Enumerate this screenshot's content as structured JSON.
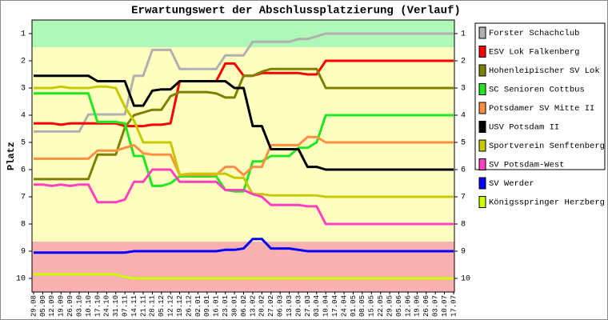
{
  "chart_data": {
    "type": "line",
    "title": "Erwartungswert der Abschlussplatzierung (Verlauf)",
    "y_label": "Platz",
    "categories": [
      "29.08",
      "05.09",
      "12.09",
      "19.09",
      "26.09",
      "03.10",
      "10.10",
      "17.10",
      "24.10",
      "31.10",
      "07.11",
      "14.11",
      "21.11",
      "28.11",
      "05.12",
      "12.12",
      "19.12",
      "26.12",
      "02.01",
      "09.01",
      "16.01",
      "23.01",
      "30.01",
      "06.02",
      "13.02",
      "20.02",
      "27.02",
      "06.03",
      "13.03",
      "20.03",
      "27.03",
      "03.04",
      "10.04",
      "17.04",
      "24.04",
      "01.05",
      "08.05",
      "15.05",
      "22.05",
      "29.05",
      "05.06",
      "12.06",
      "19.06",
      "26.06",
      "03.07",
      "10.07",
      "17.07"
    ],
    "ylim": [
      0.5,
      10.5
    ],
    "y_inverted": true,
    "yticks": [
      1,
      2,
      3,
      4,
      5,
      6,
      7,
      8,
      9,
      10
    ],
    "zones": [
      {
        "from": 0.5,
        "to": 1.5,
        "color": "#b0f8b8"
      },
      {
        "from": 1.5,
        "to": 8.65,
        "color": "#ffffc0"
      },
      {
        "from": 8.65,
        "to": 10.5,
        "color": "#f8b0b0"
      }
    ],
    "series": [
      {
        "name": "Forster Schachclub",
        "color": "#b0b0b0",
        "values": [
          4.6,
          4.6,
          4.6,
          4.6,
          4.6,
          4.6,
          3.97,
          3.97,
          3.97,
          3.97,
          3.97,
          2.55,
          2.55,
          1.6,
          1.6,
          1.6,
          2.3,
          2.3,
          2.3,
          2.3,
          2.3,
          1.8,
          1.8,
          1.8,
          1.3,
          1.3,
          1.3,
          1.3,
          1.3,
          1.2,
          1.2,
          1.1,
          1,
          1,
          1,
          1,
          1,
          1,
          1,
          1,
          1,
          1,
          1,
          1,
          1,
          1,
          1
        ]
      },
      {
        "name": "ESV Lok Falkenberg",
        "color": "#ff0000",
        "values": [
          4.3,
          4.3,
          4.3,
          4.35,
          4.3,
          4.3,
          4.3,
          4.3,
          4.3,
          4.3,
          4.4,
          4.4,
          4.4,
          4.35,
          4.35,
          4.3,
          2.75,
          2.75,
          2.75,
          2.75,
          2.75,
          2.1,
          2.1,
          2.55,
          2.55,
          2.45,
          2.45,
          2.45,
          2.45,
          2.45,
          2.5,
          2.5,
          2,
          2,
          2,
          2,
          2,
          2,
          2,
          2,
          2,
          2,
          2,
          2,
          2,
          2,
          2
        ]
      },
      {
        "name": "Hohenleipischer SV Lok",
        "color": "#808000",
        "values": [
          6.35,
          6.35,
          6.35,
          6.35,
          6.35,
          6.35,
          6.35,
          5.45,
          5.45,
          5.45,
          4.45,
          4,
          3.9,
          3.8,
          3.8,
          3.3,
          3.15,
          3.15,
          3.15,
          3.15,
          3.2,
          3.35,
          3.35,
          2.55,
          2.55,
          2.4,
          2.3,
          2.3,
          2.3,
          2.3,
          2.3,
          2.3,
          3,
          3,
          3,
          3,
          3,
          3,
          3,
          3,
          3,
          3,
          3,
          3,
          3,
          3,
          3
        ]
      },
      {
        "name": "SC Senioren Cottbus",
        "color": "#20e820",
        "values": [
          3.2,
          3.2,
          3.2,
          3.2,
          3.2,
          3.2,
          3.2,
          4.25,
          4.25,
          4.25,
          4.3,
          5.5,
          5.5,
          6.6,
          6.6,
          6.5,
          6.25,
          6.25,
          6.25,
          6.25,
          6.25,
          6.75,
          6.8,
          6.8,
          5.7,
          5.7,
          5.5,
          5.5,
          5.5,
          5.2,
          5.2,
          5,
          4,
          4,
          4,
          4,
          4,
          4,
          4,
          4,
          4,
          4,
          4,
          4,
          4,
          4,
          4
        ]
      },
      {
        "name": "Potsdamer SV Mitte II",
        "color": "#ff9040",
        "values": [
          5.6,
          5.6,
          5.6,
          5.6,
          5.6,
          5.6,
          5.6,
          5.3,
          5.3,
          5.3,
          5.2,
          5.1,
          5.4,
          5.45,
          5.45,
          5.45,
          6.2,
          6.2,
          6.2,
          6.2,
          6.2,
          5.9,
          5.9,
          6.2,
          5.9,
          5.9,
          5.1,
          5.1,
          5.1,
          5.1,
          4.8,
          4.8,
          5,
          5,
          5,
          5,
          5,
          5,
          5,
          5,
          5,
          5,
          5,
          5,
          5,
          5,
          5
        ]
      },
      {
        "name": "USV Potsdam II",
        "color": "#000000",
        "values": [
          2.55,
          2.55,
          2.55,
          2.55,
          2.55,
          2.55,
          2.55,
          2.75,
          2.75,
          2.75,
          2.75,
          3.65,
          3.65,
          3.1,
          3.05,
          3.05,
          2.75,
          2.75,
          2.75,
          2.75,
          2.75,
          2.75,
          3,
          3,
          4.4,
          4.4,
          5.25,
          5.25,
          5.25,
          5.25,
          5.9,
          5.9,
          6,
          6,
          6,
          6,
          6,
          6,
          6,
          6,
          6,
          6,
          6,
          6,
          6,
          6,
          6
        ]
      },
      {
        "name": "Sportverein Senftenberg",
        "color": "#c8c800",
        "values": [
          3,
          3,
          3,
          2.95,
          3,
          3,
          3,
          2.95,
          2.95,
          3,
          3.7,
          4.2,
          5,
          5,
          5,
          5,
          6.2,
          6.15,
          6.15,
          6.15,
          6.15,
          6.15,
          6.3,
          6.3,
          6.9,
          6.9,
          6.95,
          6.95,
          6.95,
          6.95,
          6.95,
          6.95,
          7,
          7,
          7,
          7,
          7,
          7,
          7,
          7,
          7,
          7,
          7,
          7,
          7,
          7,
          7
        ]
      },
      {
        "name": "SV Potsdam-West",
        "color": "#ff40c0",
        "values": [
          6.55,
          6.55,
          6.6,
          6.55,
          6.6,
          6.55,
          6.55,
          7.2,
          7.2,
          7.2,
          7.1,
          6.45,
          6.45,
          6,
          6,
          6,
          6.45,
          6.45,
          6.45,
          6.45,
          6.45,
          6.75,
          6.75,
          6.75,
          6.9,
          7,
          7.3,
          7.3,
          7.3,
          7.3,
          7.35,
          7.35,
          8,
          8,
          8,
          8,
          8,
          8,
          8,
          8,
          8,
          8,
          8,
          8,
          8,
          8,
          8
        ]
      },
      {
        "name": "SV Werder",
        "color": "#0000ff",
        "values": [
          9.05,
          9.05,
          9.05,
          9.05,
          9.05,
          9.05,
          9.05,
          9.05,
          9.05,
          9.05,
          9.05,
          9,
          9,
          9,
          9,
          9,
          9,
          9,
          9,
          9,
          9,
          8.95,
          8.95,
          8.9,
          8.55,
          8.55,
          8.9,
          8.9,
          8.9,
          8.95,
          9,
          9,
          9,
          9,
          9,
          9,
          9,
          9,
          9,
          9,
          9,
          9,
          9,
          9,
          9,
          9,
          9
        ]
      },
      {
        "name": "Königsspringer Herzberg",
        "color": "#ccff00",
        "values": [
          9.85,
          9.85,
          9.85,
          9.85,
          9.85,
          9.85,
          9.85,
          9.85,
          9.85,
          9.85,
          9.95,
          10,
          10,
          10,
          10,
          10,
          10,
          10,
          10,
          10,
          10,
          10,
          10,
          10,
          10,
          10,
          10,
          10,
          10,
          10,
          10,
          10,
          10,
          10,
          10,
          10,
          10,
          10,
          10,
          10,
          10,
          10,
          10,
          10,
          10,
          10,
          10
        ]
      }
    ]
  }
}
